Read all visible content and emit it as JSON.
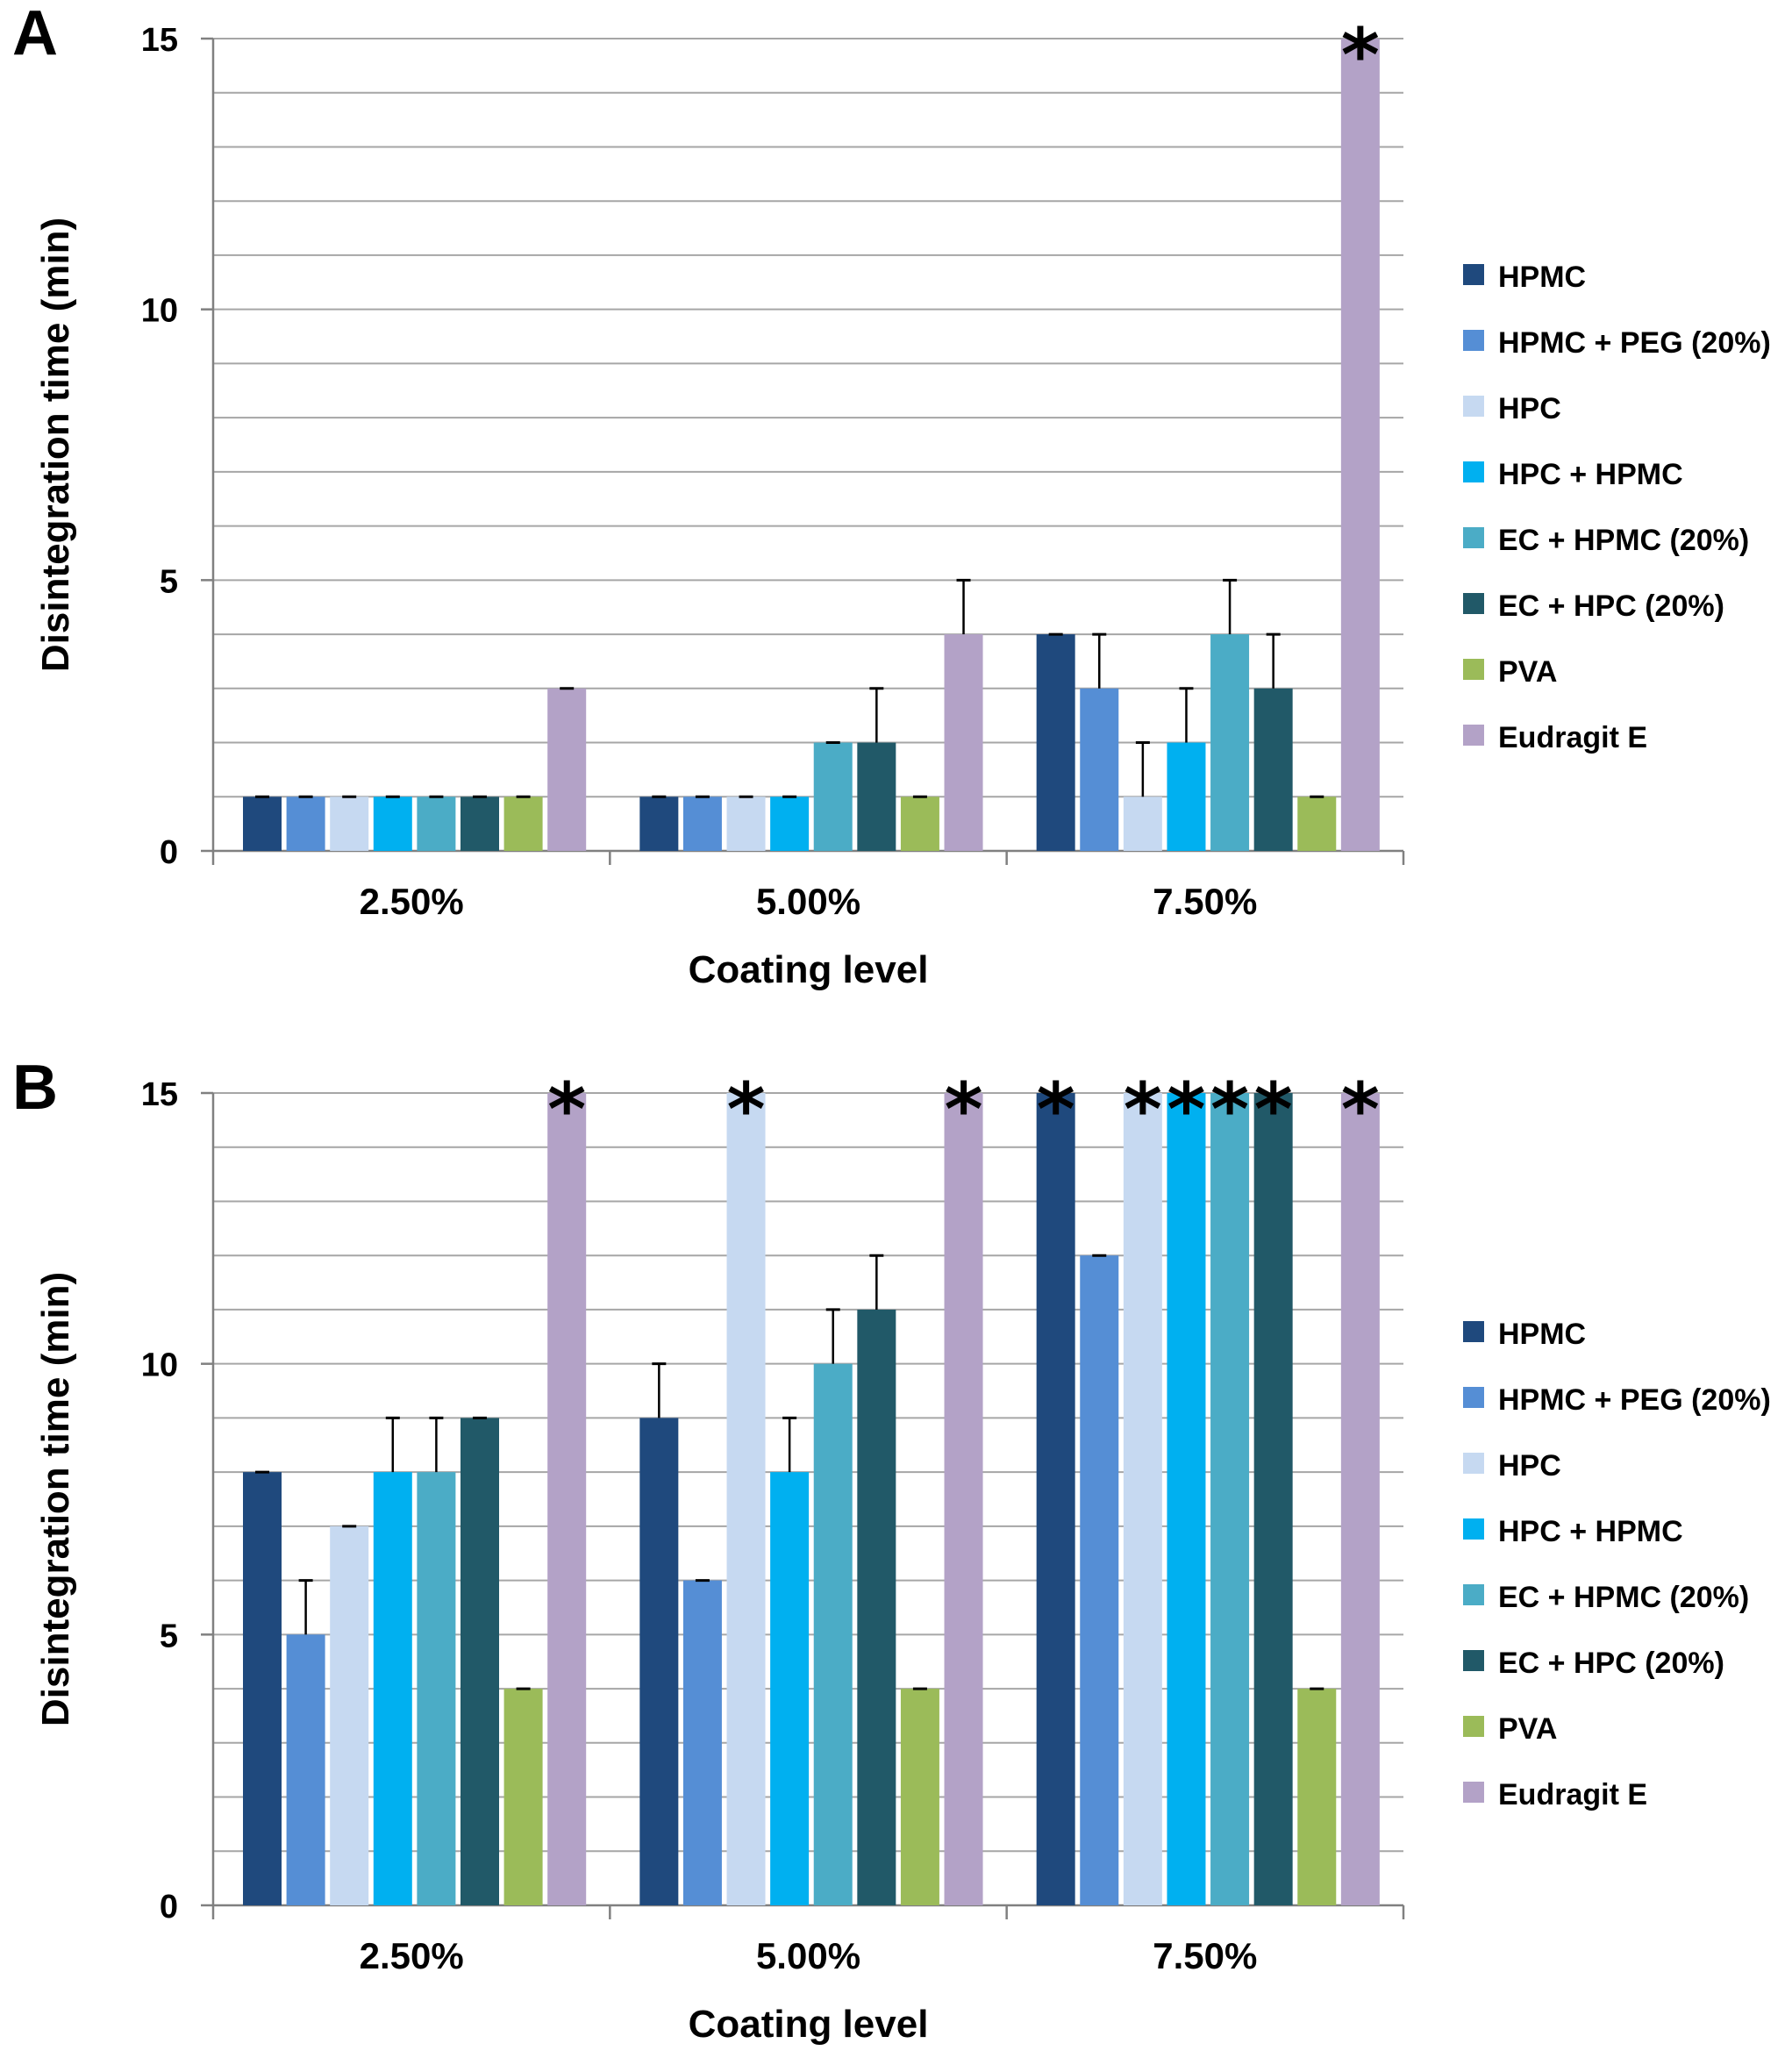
{
  "chart_data": [
    {
      "panel": "A",
      "type": "bar",
      "xlabel": "Coating level",
      "ylabel": "Disintegration time (min)",
      "ylim": [
        0,
        15
      ],
      "yticks": [
        0,
        5,
        10,
        15
      ],
      "minor_grid_step": 1,
      "grid": true,
      "legend": "right",
      "categories": [
        "2.50%",
        "5.00%",
        "7.50%"
      ],
      "series": [
        {
          "name": "HPMC",
          "color": "#1F497D",
          "values": [
            1,
            1,
            4
          ],
          "errors": [
            0,
            0,
            0
          ],
          "stars": [
            false,
            false,
            false
          ]
        },
        {
          "name": "HPMC + PEG (20%)",
          "color": "#558ED5",
          "values": [
            1,
            1,
            3
          ],
          "errors": [
            0,
            0,
            1
          ],
          "stars": [
            false,
            false,
            false
          ]
        },
        {
          "name": "HPC",
          "color": "#C6D9F1",
          "values": [
            1,
            1,
            1
          ],
          "errors": [
            0,
            0,
            1
          ],
          "stars": [
            false,
            false,
            false
          ]
        },
        {
          "name": "HPC + HPMC",
          "color": "#00B0F0",
          "values": [
            1,
            1,
            2
          ],
          "errors": [
            0,
            0,
            1
          ],
          "stars": [
            false,
            false,
            false
          ]
        },
        {
          "name": "EC + HPMC (20%)",
          "color": "#4BACC6",
          "values": [
            1,
            2,
            4
          ],
          "errors": [
            0,
            0,
            1
          ],
          "stars": [
            false,
            false,
            false
          ]
        },
        {
          "name": "EC + HPC (20%)",
          "color": "#215968",
          "values": [
            1,
            2,
            3
          ],
          "errors": [
            0,
            1,
            1
          ],
          "stars": [
            false,
            false,
            false
          ]
        },
        {
          "name": "PVA",
          "color": "#9BBB59",
          "values": [
            1,
            1,
            1
          ],
          "errors": [
            0,
            0,
            0
          ],
          "stars": [
            false,
            false,
            false
          ]
        },
        {
          "name": "Eudragit E",
          "color": "#B3A2C7",
          "values": [
            3,
            4,
            15
          ],
          "errors": [
            0,
            1,
            0
          ],
          "stars": [
            false,
            false,
            true
          ]
        }
      ],
      "star_symbol": "*"
    },
    {
      "panel": "B",
      "type": "bar",
      "xlabel": "Coating level",
      "ylabel": "Disintegration time (min)",
      "ylim": [
        0,
        15
      ],
      "yticks": [
        0,
        5,
        10,
        15
      ],
      "minor_grid_step": 1,
      "grid": true,
      "legend": "right",
      "categories": [
        "2.50%",
        "5.00%",
        "7.50%"
      ],
      "series": [
        {
          "name": "HPMC",
          "color": "#1F497D",
          "values": [
            8,
            9,
            15
          ],
          "errors": [
            0,
            1,
            0
          ],
          "stars": [
            false,
            false,
            true
          ]
        },
        {
          "name": "HPMC + PEG (20%)",
          "color": "#558ED5",
          "values": [
            5,
            6,
            12
          ],
          "errors": [
            1,
            0,
            0
          ],
          "stars": [
            false,
            false,
            false
          ]
        },
        {
          "name": "HPC",
          "color": "#C6D9F1",
          "values": [
            7,
            15,
            15
          ],
          "errors": [
            0,
            0,
            0
          ],
          "stars": [
            false,
            true,
            true
          ]
        },
        {
          "name": "HPC + HPMC",
          "color": "#00B0F0",
          "values": [
            8,
            8,
            15
          ],
          "errors": [
            1,
            1,
            0
          ],
          "stars": [
            false,
            false,
            true
          ]
        },
        {
          "name": "EC + HPMC (20%)",
          "color": "#4BACC6",
          "values": [
            8,
            10,
            15
          ],
          "errors": [
            1,
            1,
            0
          ],
          "stars": [
            false,
            false,
            true
          ]
        },
        {
          "name": "EC + HPC (20%)",
          "color": "#215968",
          "values": [
            9,
            11,
            15
          ],
          "errors": [
            0,
            1,
            0
          ],
          "stars": [
            false,
            false,
            true
          ]
        },
        {
          "name": "PVA",
          "color": "#9BBB59",
          "values": [
            4,
            4,
            4
          ],
          "errors": [
            0,
            0,
            0
          ],
          "stars": [
            false,
            false,
            false
          ]
        },
        {
          "name": "Eudragit E",
          "color": "#B3A2C7",
          "values": [
            15,
            15,
            15
          ],
          "errors": [
            0,
            0,
            0
          ],
          "stars": [
            true,
            true,
            true
          ]
        }
      ],
      "star_symbol": "*"
    }
  ]
}
